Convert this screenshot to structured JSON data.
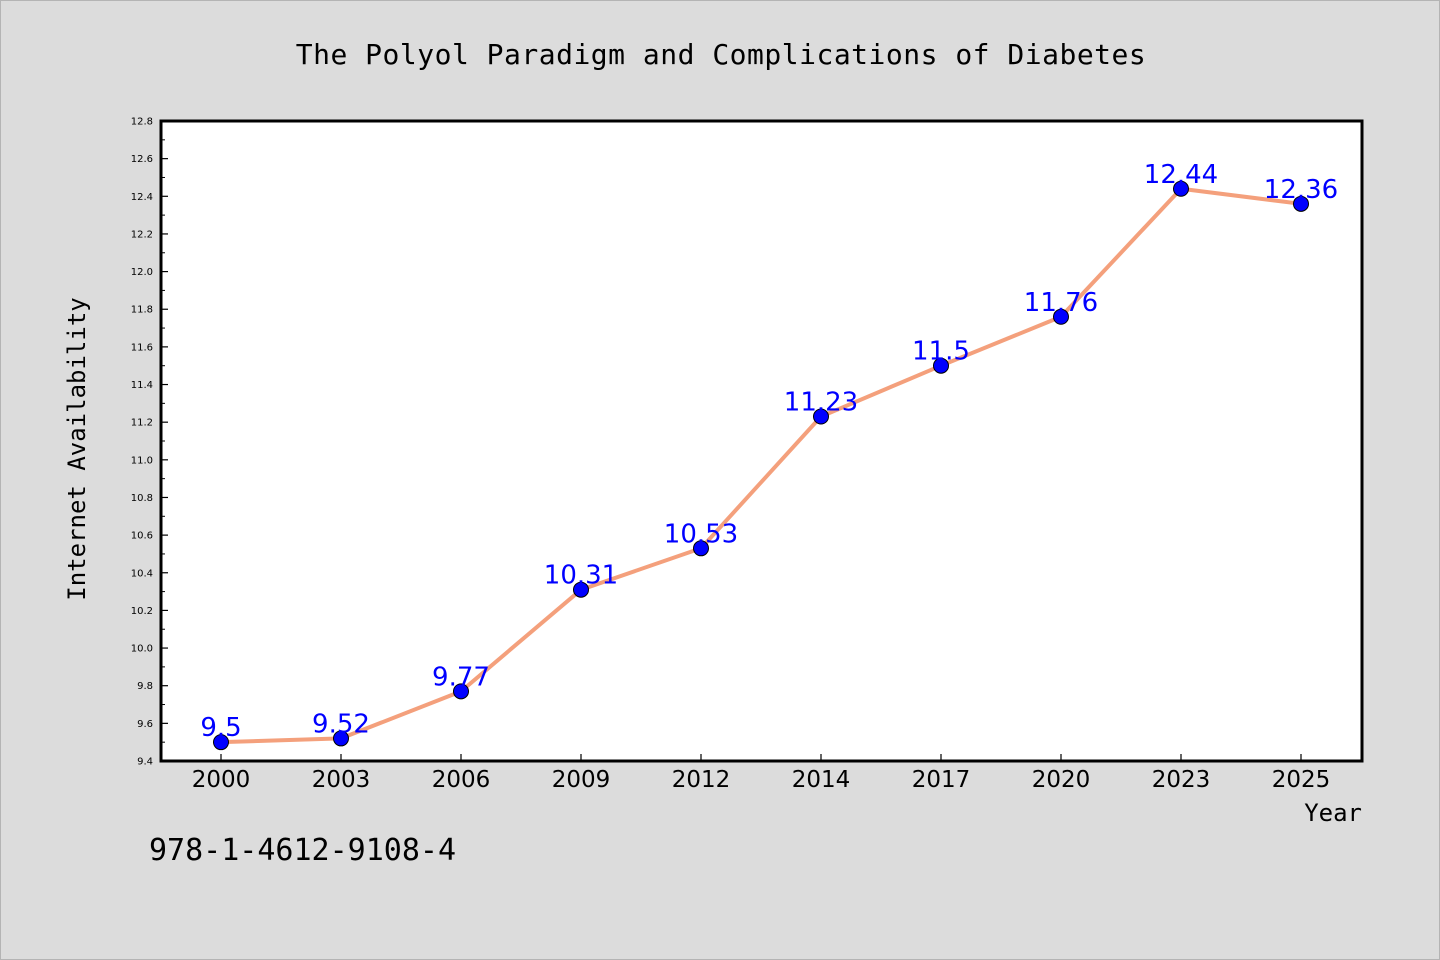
{
  "chart_data": {
    "type": "line",
    "title": "The Polyol Paradigm and Complications of Diabetes",
    "xlabel": "Year",
    "ylabel": "Internet Availability",
    "categories": [
      "2000",
      "2003",
      "2006",
      "2009",
      "2012",
      "2014",
      "2017",
      "2020",
      "2023",
      "2025"
    ],
    "series": [
      {
        "values": [
          9.5,
          9.52,
          9.77,
          10.31,
          10.53,
          11.23,
          11.5,
          11.76,
          12.44,
          12.36
        ],
        "labels": [
          "9.5",
          "9.52",
          "9.77",
          "10.31",
          "10.53",
          "11.23",
          "11.5",
          "11.76",
          "12.44",
          "12.36"
        ],
        "line_color": "#f4a07c",
        "marker_color": "#0000ff",
        "label_color": "#0000ff"
      }
    ],
    "ylim": [
      9.4,
      12.8
    ],
    "yticks": [
      "9.4",
      "9.6",
      "9.8",
      "10.0",
      "10.2",
      "10.4",
      "10.6",
      "10.8",
      "11.0",
      "11.2",
      "11.4",
      "11.6",
      "11.8",
      "12.0",
      "12.2",
      "12.4",
      "12.6",
      "12.8"
    ],
    "grid": false,
    "legend": "none"
  },
  "footnote": "978-1-4612-9108-4",
  "colors": {
    "background": "#dcdcdc",
    "plot_background": "#ffffff",
    "axis": "#000000"
  }
}
